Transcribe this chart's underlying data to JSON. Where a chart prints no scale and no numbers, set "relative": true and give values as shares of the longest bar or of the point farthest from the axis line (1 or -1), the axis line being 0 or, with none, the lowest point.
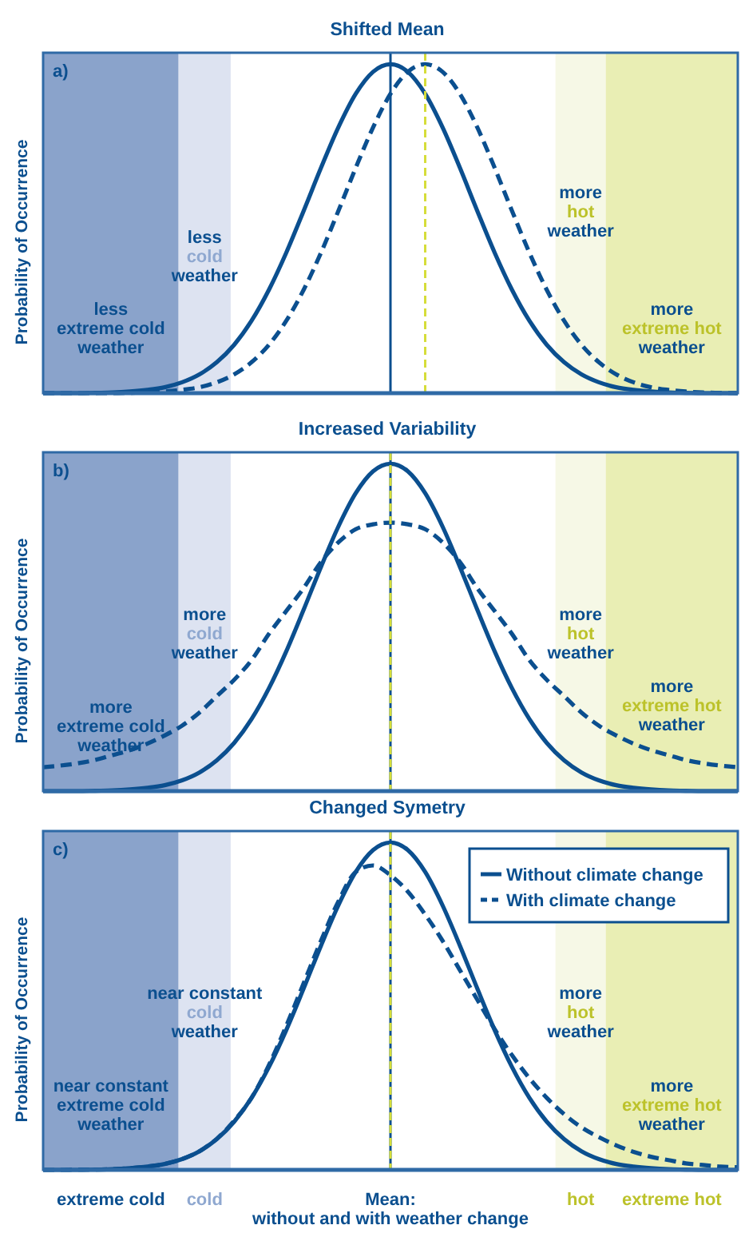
{
  "chart_data": [
    {
      "type": "line",
      "title": "Shifted Mean",
      "subtitle": "a)",
      "ylabel": "Probability of Occurrence",
      "relative": true,
      "categories": [
        null,
        null,
        null,
        null,
        null,
        null,
        null,
        null,
        null,
        null,
        null,
        null,
        null,
        null,
        null,
        null,
        null,
        null,
        null,
        null,
        null,
        null,
        null,
        null,
        null,
        null,
        null,
        null,
        null,
        null,
        null,
        null,
        null,
        null,
        null,
        null,
        null,
        null,
        null,
        null,
        null
      ],
      "series": [
        {
          "color": "#0b4f8f",
          "line_style": "solid",
          "values": [
            0,
            0,
            0,
            0.001,
            0.002,
            0.005,
            0.01,
            0.018,
            0.033,
            0.057,
            0.094,
            0.147,
            0.22,
            0.314,
            0.427,
            0.554,
            0.685,
            0.808,
            0.91,
            0.977,
            1,
            0.977,
            0.91,
            0.808,
            0.685,
            0.554,
            0.427,
            0.314,
            0.22,
            0.147,
            0.094,
            0.057,
            0.033,
            0.018,
            0.01,
            0.005,
            0.002,
            0.001,
            0,
            0,
            0
          ]
        },
        {
          "color": "#0b4f8f",
          "line_style": "dashed",
          "values": [
            0,
            0,
            0,
            0,
            0,
            0.001,
            0.002,
            0.005,
            0.01,
            0.018,
            0.033,
            0.057,
            0.094,
            0.147,
            0.22,
            0.314,
            0.427,
            0.554,
            0.685,
            0.808,
            0.91,
            0.977,
            1,
            0.977,
            0.91,
            0.808,
            0.685,
            0.554,
            0.427,
            0.314,
            0.22,
            0.147,
            0.094,
            0.057,
            0.033,
            0.018,
            0.01,
            0.005,
            0.002,
            0.001,
            0
          ]
        }
      ],
      "annotations": [
        "less\nextreme cold\nweather",
        "less\ncold\nweather",
        "more\nhot\nweather",
        "more\nextreme hot\nweather"
      ]
    },
    {
      "type": "line",
      "title": "Increased Variability",
      "subtitle": "b)",
      "ylabel": "Probability of Occurrence",
      "relative": true,
      "categories": [
        null,
        null,
        null,
        null,
        null,
        null,
        null,
        null,
        null,
        null,
        null,
        null,
        null,
        null,
        null,
        null,
        null,
        null,
        null,
        null,
        null,
        null,
        null,
        null,
        null,
        null,
        null,
        null,
        null,
        null,
        null,
        null,
        null,
        null,
        null,
        null,
        null,
        null,
        null,
        null,
        null
      ],
      "series": [
        {
          "color": "#0b4f8f",
          "line_style": "solid",
          "values": [
            0,
            0,
            0,
            0.001,
            0.002,
            0.005,
            0.01,
            0.018,
            0.033,
            0.057,
            0.094,
            0.147,
            0.22,
            0.314,
            0.427,
            0.554,
            0.685,
            0.808,
            0.91,
            0.977,
            1,
            0.977,
            0.91,
            0.808,
            0.685,
            0.554,
            0.427,
            0.314,
            0.22,
            0.147,
            0.094,
            0.057,
            0.033,
            0.018,
            0.01,
            0.005,
            0.002,
            0.001,
            0,
            0,
            0
          ]
        },
        {
          "color": "#0b4f8f",
          "line_style": "dashed",
          "values": [
            0.073,
            0.078,
            0.085,
            0.095,
            0.11,
            0.125,
            0.145,
            0.17,
            0.2,
            0.24,
            0.29,
            0.34,
            0.4,
            0.48,
            0.55,
            0.62,
            0.7,
            0.76,
            0.8,
            0.815,
            0.82,
            0.815,
            0.8,
            0.76,
            0.7,
            0.62,
            0.55,
            0.48,
            0.4,
            0.34,
            0.29,
            0.24,
            0.2,
            0.17,
            0.145,
            0.125,
            0.11,
            0.095,
            0.085,
            0.078,
            0.073
          ]
        }
      ],
      "annotations": [
        "more\nextreme cold\nweather",
        "more\ncold\nweather",
        "more\nhot\nweather",
        "more\nextreme hot\nweather"
      ]
    },
    {
      "type": "line",
      "title": "Changed Symetry",
      "subtitle": "c)",
      "ylabel": "Probability of Occurrence",
      "relative": true,
      "legend": "top right",
      "categories": [
        null,
        null,
        null,
        null,
        null,
        null,
        null,
        null,
        null,
        null,
        null,
        null,
        null,
        null,
        null,
        null,
        null,
        null,
        null,
        null,
        null,
        null,
        null,
        null,
        null,
        null,
        null,
        null,
        null,
        null,
        null,
        null,
        null,
        null,
        null,
        null,
        null,
        null,
        null,
        null,
        null
      ],
      "series": [
        {
          "name": "Without climate change",
          "color": "#0b4f8f",
          "line_style": "solid",
          "values": [
            0,
            0,
            0,
            0.001,
            0.002,
            0.005,
            0.01,
            0.018,
            0.033,
            0.057,
            0.094,
            0.147,
            0.22,
            0.314,
            0.427,
            0.554,
            0.685,
            0.808,
            0.91,
            0.977,
            1,
            0.977,
            0.91,
            0.808,
            0.685,
            0.554,
            0.427,
            0.314,
            0.22,
            0.147,
            0.094,
            0.057,
            0.033,
            0.018,
            0.01,
            0.005,
            0.002,
            0.001,
            0,
            0,
            0
          ]
        },
        {
          "name": "With climate change",
          "color": "#0b4f8f",
          "line_style": "dashed",
          "values": [
            0,
            0,
            0.001,
            0.001,
            0.002,
            0.005,
            0.01,
            0.018,
            0.033,
            0.057,
            0.095,
            0.15,
            0.22,
            0.32,
            0.44,
            0.57,
            0.7,
            0.82,
            0.91,
            0.93,
            0.9,
            0.85,
            0.78,
            0.7,
            0.61,
            0.52,
            0.43,
            0.35,
            0.28,
            0.22,
            0.17,
            0.13,
            0.1,
            0.075,
            0.055,
            0.04,
            0.03,
            0.02,
            0.015,
            0.01,
            0.008
          ]
        }
      ],
      "annotations": [
        "near constant\nextreme cold\nweather",
        "near constant\ncold\nweather",
        "more\nhot\nweather",
        "more\nextreme hot\nweather",
        "extreme cold",
        "cold",
        "hot",
        "extreme hot",
        "Mean:\nwithout and with weather change"
      ]
    }
  ]
}
